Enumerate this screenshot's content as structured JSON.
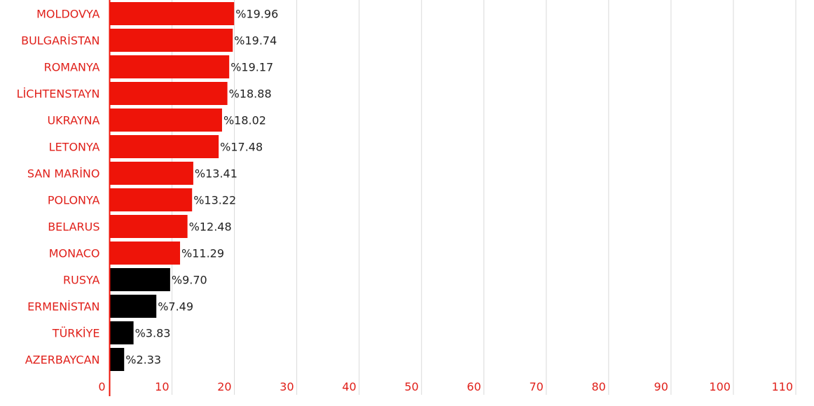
{
  "chart_data": {
    "type": "bar",
    "orientation": "horizontal",
    "categories": [
      "MOLDOVYA",
      "BULGARİSTAN",
      "ROMANYA",
      "LİCHTENSTAYN",
      "UKRAYNA",
      "LETONYA",
      "SAN MARİNO",
      "POLONYA",
      "BELARUS",
      "MONACO",
      "RUSYA",
      "ERMENİSTAN",
      "TÜRKİYE",
      "AZERBAYCAN"
    ],
    "values": [
      19.96,
      19.74,
      19.17,
      18.88,
      18.02,
      17.48,
      13.41,
      13.22,
      12.48,
      11.29,
      9.7,
      7.49,
      3.83,
      2.33
    ],
    "value_labels": [
      "%19.96",
      "%19.74",
      "%19.17",
      "%18.88",
      "%18.02",
      "%17.48",
      "%13.41",
      "%13.22",
      "%12.48",
      "%11.29",
      "%9.70",
      "%7.49",
      "%3.83",
      "%2.33"
    ],
    "bar_colors": [
      "#ee1409",
      "#ee1409",
      "#ee1409",
      "#ee1409",
      "#ee1409",
      "#ee1409",
      "#ee1409",
      "#ee1409",
      "#ee1409",
      "#ee1409",
      "#000000",
      "#000000",
      "#000000",
      "#000000"
    ],
    "xlim": [
      0,
      110
    ],
    "x_ticks": [
      0,
      10,
      20,
      30,
      40,
      50,
      60,
      70,
      80,
      90,
      100,
      110
    ],
    "x_tick_labels": [
      "0",
      "10",
      "20",
      "30",
      "40",
      "50",
      "60",
      "70",
      "80",
      "90",
      "100",
      "110"
    ],
    "grid": true,
    "legend": "none",
    "title": "",
    "xlabel": "",
    "ylabel": ""
  },
  "colors": {
    "accent_red": "#ee1409",
    "bar_black": "#000000",
    "label_red": "#e0201a",
    "value_text": "#222222",
    "grid": "#d9d9d9",
    "axis_line": "#ee1409"
  }
}
